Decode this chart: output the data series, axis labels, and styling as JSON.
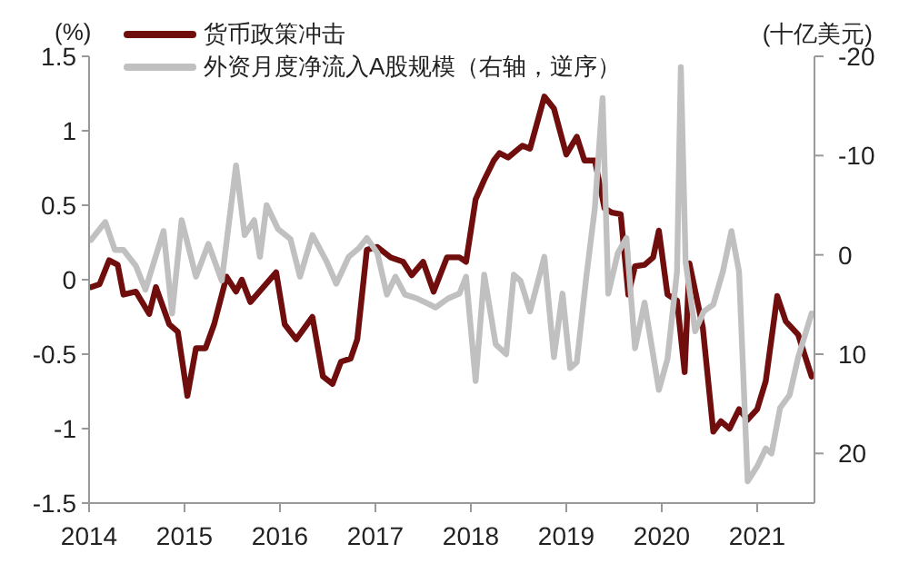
{
  "chart_data": {
    "type": "line",
    "ylabel": "(%)",
    "y2label": "(十亿美元)",
    "legend": "top left",
    "marker": "none",
    "line_style": "solid",
    "xlim": [
      2014,
      2021.6
    ],
    "xticks": [
      2014,
      2015,
      2016,
      2017,
      2018,
      2019,
      2020,
      2021
    ],
    "ylim": [
      -1.5,
      1.5
    ],
    "yticks": [
      -1.5,
      -1,
      -0.5,
      0,
      0.5,
      1,
      1.5
    ],
    "y2lim": [
      25,
      -20
    ],
    "y2ticks": [
      -20,
      -10,
      0,
      10,
      20
    ],
    "series": [
      {
        "name": "货币政策冲击",
        "color": "#700d0d",
        "x": [
          2014.02,
          2014.11,
          2014.21,
          2014.3,
          2014.36,
          2014.49,
          2014.63,
          2014.7,
          2014.84,
          2014.93,
          2015.03,
          2015.12,
          2015.22,
          2015.31,
          2015.44,
          2015.54,
          2015.6,
          2015.69,
          2015.96,
          2016.05,
          2016.17,
          2016.34,
          2016.45,
          2016.55,
          2016.64,
          2016.74,
          2016.81,
          2016.91,
          2017.02,
          2017.16,
          2017.29,
          2017.38,
          2017.5,
          2017.61,
          2017.75,
          2017.88,
          2017.95,
          2018.05,
          2018.14,
          2018.24,
          2018.3,
          2018.39,
          2018.54,
          2018.62,
          2018.77,
          2018.87,
          2019.0,
          2019.11,
          2019.19,
          2019.3,
          2019.4,
          2019.48,
          2019.57,
          2019.65,
          2019.72,
          2019.82,
          2019.91,
          2019.97,
          2020.06,
          2020.16,
          2020.24,
          2020.29,
          2020.43,
          2020.54,
          2020.62,
          2020.71,
          2020.81,
          2020.9,
          2021.0,
          2021.09,
          2021.21,
          2021.3,
          2021.43,
          2021.57
        ],
        "values": [
          -0.05,
          -0.03,
          0.13,
          0.1,
          -0.1,
          -0.08,
          -0.23,
          -0.05,
          -0.3,
          -0.35,
          -0.78,
          -0.46,
          -0.46,
          -0.3,
          0.02,
          -0.08,
          0.0,
          -0.15,
          0.05,
          -0.3,
          -0.4,
          -0.25,
          -0.65,
          -0.7,
          -0.55,
          -0.53,
          -0.4,
          0.2,
          0.22,
          0.15,
          0.12,
          0.03,
          0.12,
          -0.08,
          0.15,
          0.15,
          0.12,
          0.54,
          0.67,
          0.8,
          0.85,
          0.82,
          0.9,
          0.88,
          1.23,
          1.15,
          0.84,
          0.96,
          0.8,
          0.8,
          0.48,
          0.45,
          0.44,
          -0.1,
          0.09,
          0.1,
          0.15,
          0.33,
          -0.1,
          -0.14,
          -0.62,
          0.11,
          -0.32,
          -1.02,
          -0.95,
          -1.0,
          -0.87,
          -0.94,
          -0.87,
          -0.68,
          -0.11,
          -0.28,
          -0.37,
          -0.65
        ]
      },
      {
        "name": "外资月度净流入A股规模（右轴，逆序）",
        "color": "#c0c0c0",
        "axis": "y2",
        "x": [
          2014.02,
          2014.17,
          2014.27,
          2014.36,
          2014.49,
          2014.59,
          2014.78,
          2014.87,
          2014.97,
          2015.12,
          2015.25,
          2015.39,
          2015.54,
          2015.63,
          2015.73,
          2015.79,
          2015.86,
          2015.98,
          2016.11,
          2016.21,
          2016.34,
          2016.49,
          2016.59,
          2016.72,
          2016.83,
          2016.91,
          2017.02,
          2017.12,
          2017.21,
          2017.31,
          2017.44,
          2017.57,
          2017.63,
          2017.76,
          2017.88,
          2017.95,
          2018.05,
          2018.14,
          2018.26,
          2018.37,
          2018.45,
          2018.52,
          2018.62,
          2018.77,
          2018.87,
          2018.96,
          2019.04,
          2019.11,
          2019.21,
          2019.3,
          2019.38,
          2019.44,
          2019.54,
          2019.63,
          2019.72,
          2019.82,
          2019.97,
          2020.06,
          2020.16,
          2020.2,
          2020.25,
          2020.35,
          2020.44,
          2020.54,
          2020.64,
          2020.73,
          2020.81,
          2020.9,
          2021.0,
          2021.09,
          2021.15,
          2021.24,
          2021.34,
          2021.43,
          2021.57
        ],
        "values": [
          -1.5,
          -3.3,
          -0.5,
          -0.5,
          1.1,
          3.5,
          -2.4,
          5.9,
          -3.5,
          2.2,
          -1.1,
          2.6,
          -9,
          -2,
          -3.5,
          0.2,
          -5,
          -2.6,
          -1.6,
          2.2,
          -2,
          0.7,
          2.9,
          0.2,
          -0.7,
          -1.7,
          -0.2,
          4,
          2.2,
          4,
          4.4,
          5,
          5.3,
          4.4,
          3.9,
          2.2,
          12.7,
          2,
          9,
          10,
          2,
          2.6,
          5.7,
          0.2,
          10.3,
          3.9,
          11.4,
          10.8,
          2.2,
          -4.8,
          -15.8,
          3.9,
          -0.2,
          -1.7,
          9.4,
          4.8,
          13.6,
          10.5,
          1.7,
          -18.9,
          0.7,
          7.7,
          5.7,
          5,
          1.7,
          -2.4,
          1.7,
          22.8,
          21.3,
          19.5,
          20,
          15.4,
          14.1,
          10.3,
          5.9
        ]
      }
    ]
  }
}
